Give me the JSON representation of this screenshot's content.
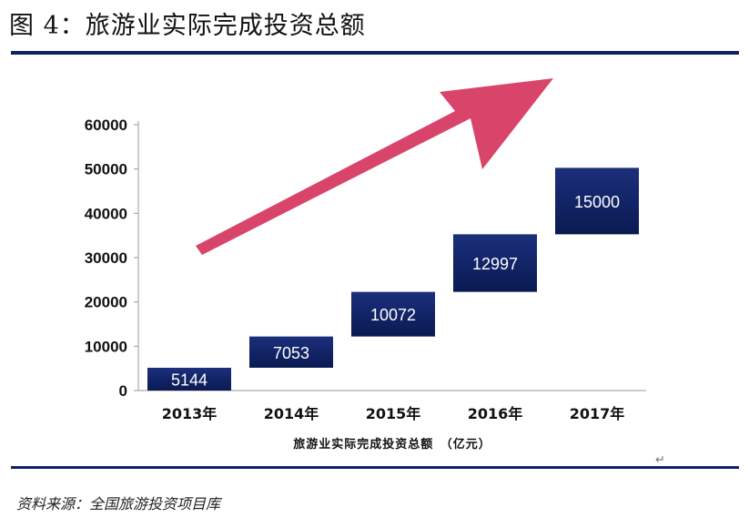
{
  "figure": {
    "title": "图 4：旅游业实际完成投资总额",
    "source": "资料来源：全国旅游投资项目库",
    "colors": {
      "rule": "#10215f",
      "bar_top": "#1b2f7c",
      "bar_bottom": "#0a1a52",
      "arrow": "#d9456a"
    }
  },
  "chart_data": {
    "type": "bar",
    "subtype": "waterfall",
    "categories": [
      "2013年",
      "2014年",
      "2015年",
      "2016年",
      "2017年"
    ],
    "values": [
      5144,
      7053,
      10072,
      12997,
      15000
    ],
    "value_labels": [
      "5144",
      "7053",
      "10072",
      "12997",
      "15000"
    ],
    "xlabel": "旅游业实际完成投资总额　（亿元）",
    "ylim": [
      0,
      60000
    ],
    "yticks": [
      0,
      10000,
      20000,
      30000,
      40000,
      50000,
      60000
    ],
    "ytick_labels": [
      "0",
      "10000",
      "20000",
      "30000",
      "40000",
      "50000",
      "60000"
    ],
    "grid": false,
    "legend": "none",
    "annotation": "rising-trend-arrow"
  }
}
